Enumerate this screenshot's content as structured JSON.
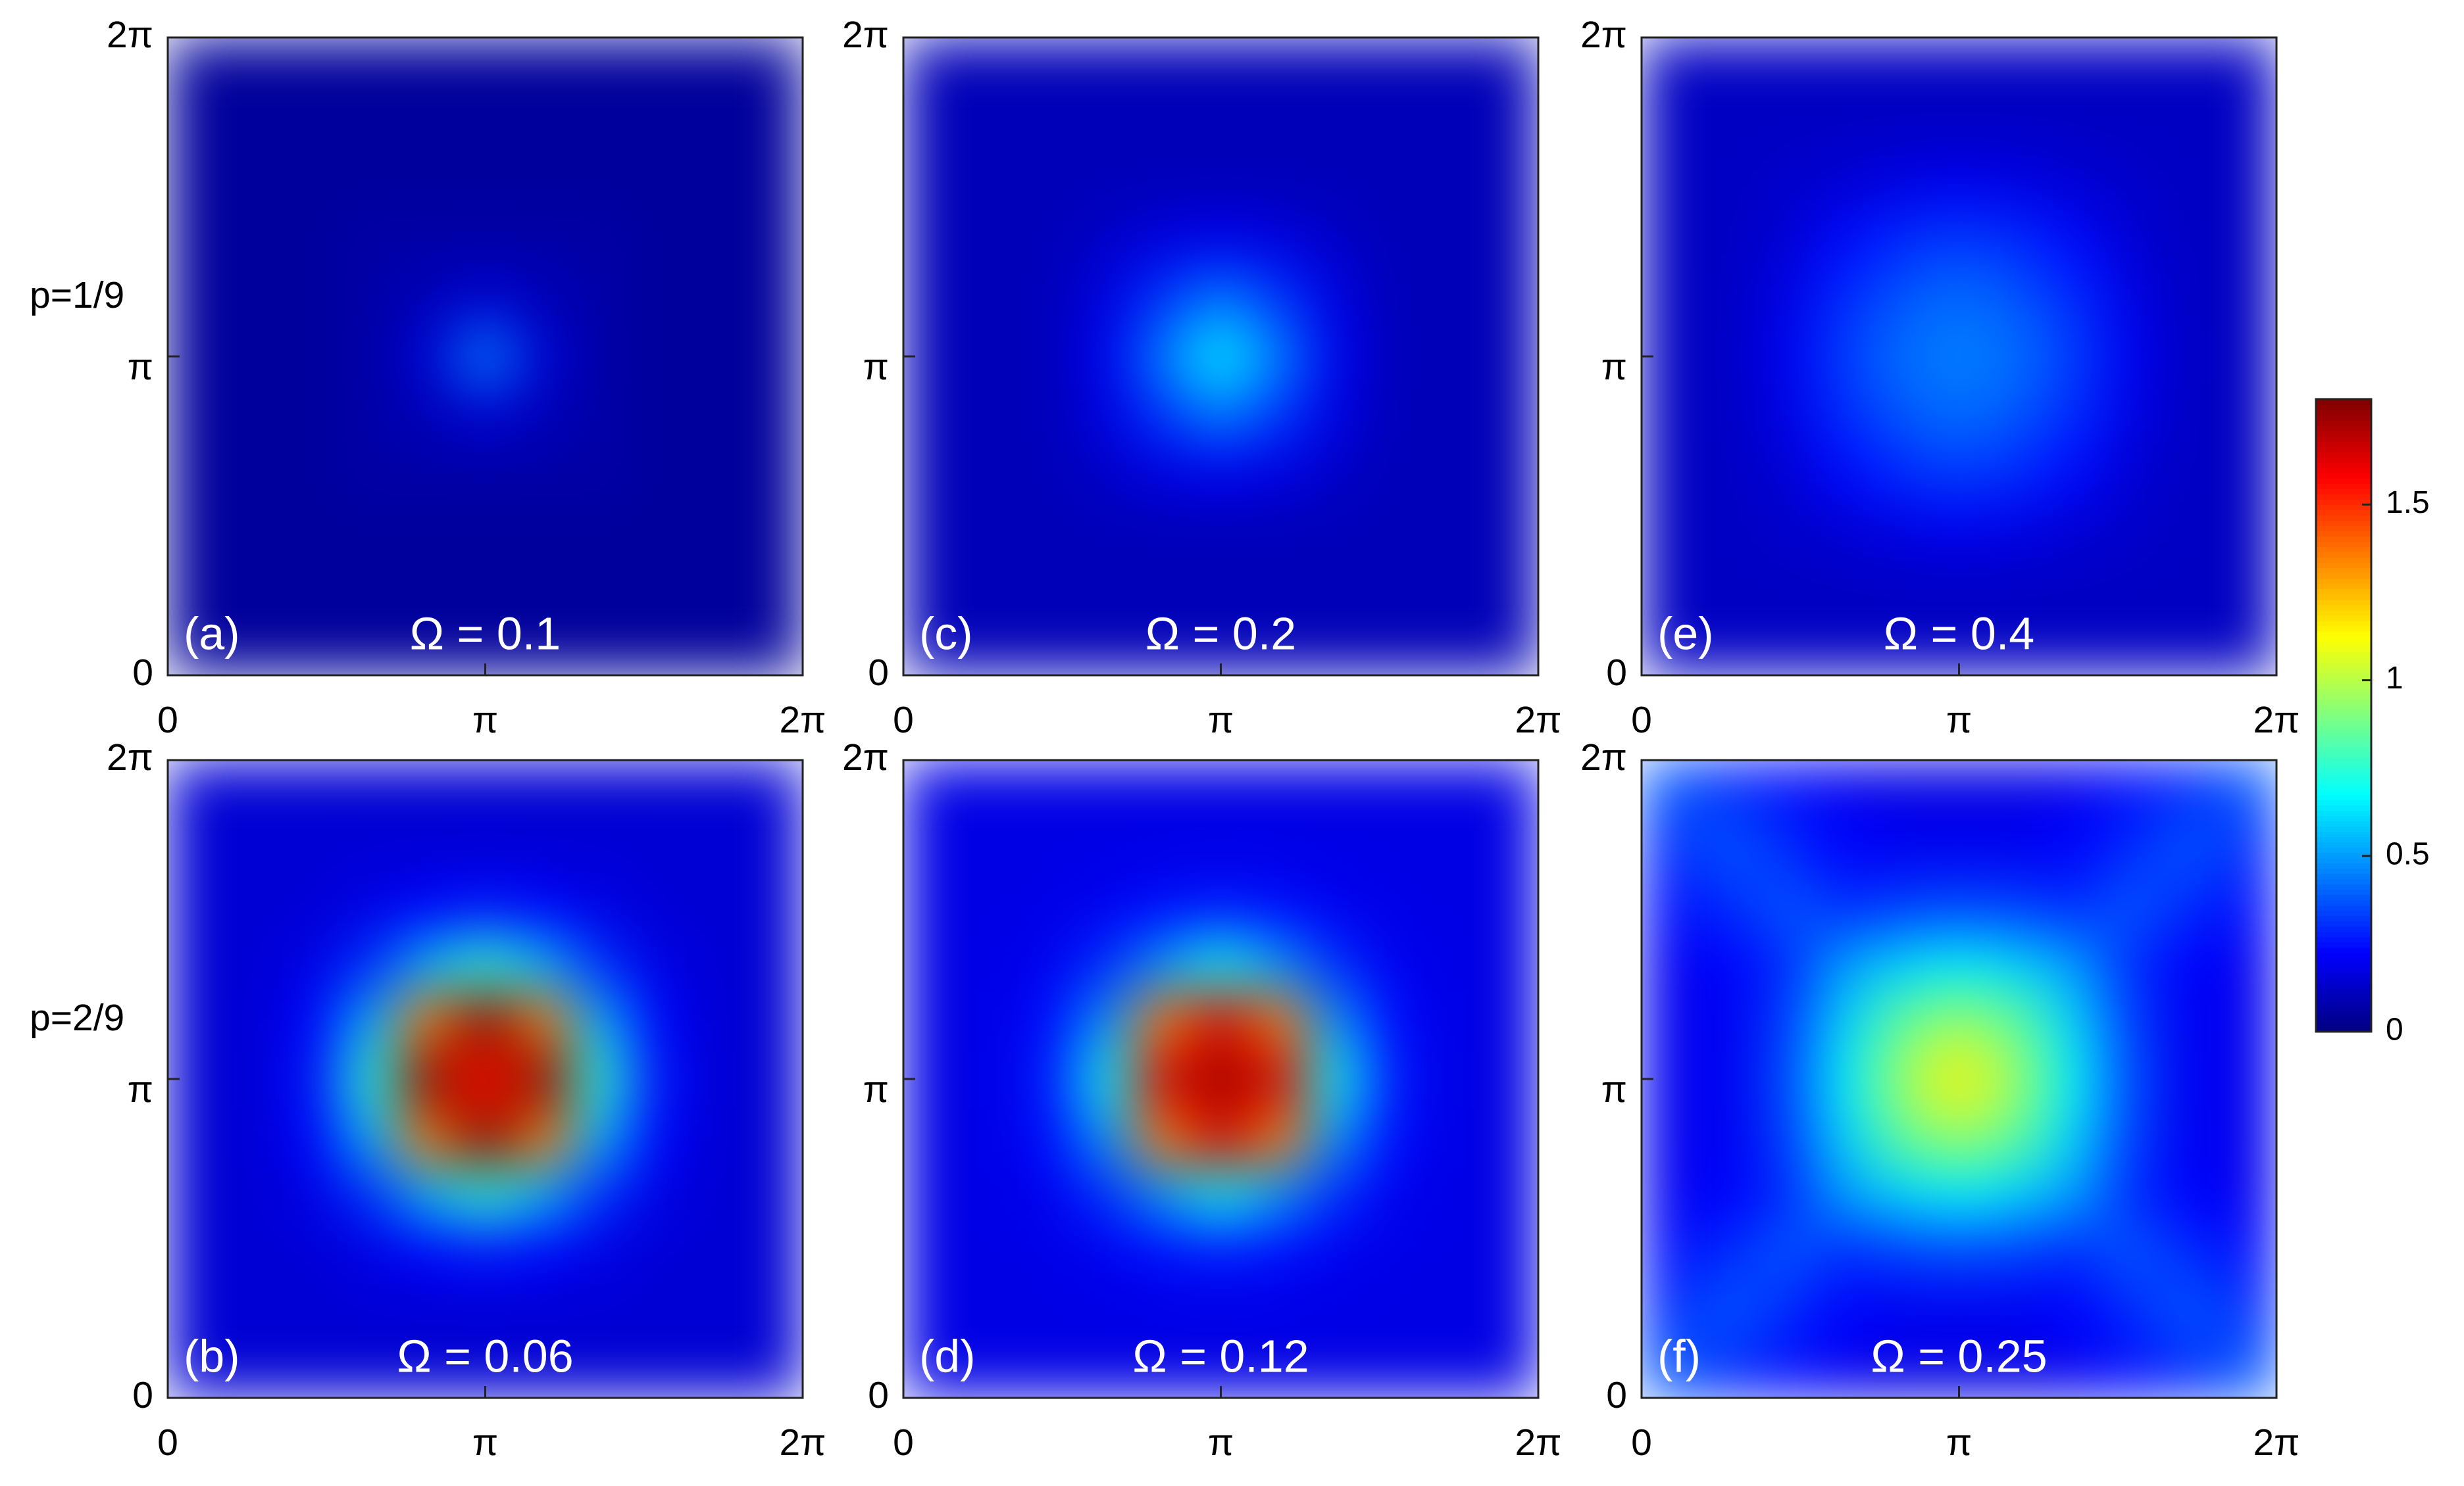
{
  "chart_data": [
    {
      "type": "heatmap",
      "label": "(a)",
      "annotation": "Ω = 0.1",
      "xlim": [
        0,
        6.28319
      ],
      "ylim": [
        0,
        6.28319
      ],
      "xticks": [
        0,
        {
          "value": 3.14159,
          "label": "π"
        },
        {
          "value": 6.28319,
          "label": "2π"
        }
      ],
      "yticks": [
        0,
        {
          "value": 3.14159,
          "label": "π"
        },
        {
          "value": 6.28319,
          "label": "2π"
        }
      ],
      "z": [
        [
          0.05,
          0.05,
          0.05,
          0.05,
          0.05,
          0.05,
          0.05,
          0.05,
          0.05,
          0.05,
          0.05
        ],
        [
          0.05,
          0.05,
          0.05,
          0.05,
          0.05,
          0.05,
          0.05,
          0.05,
          0.05,
          0.05,
          0.05
        ],
        [
          0.05,
          0.05,
          0.05,
          0.05,
          0.05,
          0.05,
          0.05,
          0.05,
          0.05,
          0.05,
          0.05
        ],
        [
          0.05,
          0.05,
          0.05,
          0.07,
          0.07,
          0.07,
          0.07,
          0.07,
          0.05,
          0.05,
          0.05
        ],
        [
          0.05,
          0.05,
          0.05,
          0.07,
          0.1,
          0.15,
          0.1,
          0.07,
          0.05,
          0.05,
          0.05
        ],
        [
          0.05,
          0.05,
          0.05,
          0.07,
          0.15,
          0.45,
          0.15,
          0.07,
          0.05,
          0.05,
          0.05
        ],
        [
          0.05,
          0.05,
          0.05,
          0.07,
          0.1,
          0.15,
          0.1,
          0.07,
          0.05,
          0.05,
          0.05
        ],
        [
          0.05,
          0.05,
          0.05,
          0.07,
          0.07,
          0.07,
          0.07,
          0.07,
          0.05,
          0.05,
          0.05
        ],
        [
          0.05,
          0.05,
          0.05,
          0.05,
          0.05,
          0.05,
          0.05,
          0.05,
          0.05,
          0.05,
          0.05
        ],
        [
          0.05,
          0.05,
          0.05,
          0.05,
          0.05,
          0.05,
          0.05,
          0.05,
          0.05,
          0.05,
          0.05
        ],
        [
          0.05,
          0.05,
          0.05,
          0.05,
          0.05,
          0.05,
          0.05,
          0.05,
          0.05,
          0.05,
          0.05
        ]
      ]
    },
    {
      "type": "heatmap",
      "label": "(c)",
      "annotation": "Ω = 0.2",
      "xlim": [
        0,
        6.28319
      ],
      "ylim": [
        0,
        6.28319
      ],
      "xticks": [
        0,
        {
          "value": 3.14159,
          "label": "π"
        },
        {
          "value": 6.28319,
          "label": "2π"
        }
      ],
      "yticks": [
        0,
        {
          "value": 3.14159,
          "label": "π"
        },
        {
          "value": 6.28319,
          "label": "2π"
        }
      ],
      "z": [
        [
          0.1,
          0.1,
          0.1,
          0.1,
          0.1,
          0.1,
          0.1,
          0.1,
          0.1,
          0.1,
          0.1
        ],
        [
          0.1,
          0.1,
          0.1,
          0.1,
          0.1,
          0.1,
          0.1,
          0.1,
          0.1,
          0.1,
          0.1
        ],
        [
          0.1,
          0.1,
          0.1,
          0.1,
          0.1,
          0.1,
          0.1,
          0.1,
          0.1,
          0.1,
          0.1
        ],
        [
          0.1,
          0.1,
          0.1,
          0.13,
          0.17,
          0.2,
          0.17,
          0.13,
          0.1,
          0.1,
          0.1
        ],
        [
          0.1,
          0.1,
          0.1,
          0.17,
          0.32,
          0.45,
          0.32,
          0.17,
          0.1,
          0.1,
          0.1
        ],
        [
          0.1,
          0.1,
          0.1,
          0.2,
          0.45,
          0.65,
          0.45,
          0.2,
          0.1,
          0.1,
          0.1
        ],
        [
          0.1,
          0.1,
          0.1,
          0.17,
          0.32,
          0.45,
          0.32,
          0.17,
          0.1,
          0.1,
          0.1
        ],
        [
          0.1,
          0.1,
          0.1,
          0.13,
          0.17,
          0.2,
          0.17,
          0.13,
          0.1,
          0.1,
          0.1
        ],
        [
          0.1,
          0.1,
          0.1,
          0.1,
          0.1,
          0.1,
          0.1,
          0.1,
          0.1,
          0.1,
          0.1
        ],
        [
          0.1,
          0.1,
          0.1,
          0.1,
          0.1,
          0.1,
          0.1,
          0.1,
          0.1,
          0.1,
          0.1
        ],
        [
          0.1,
          0.1,
          0.1,
          0.1,
          0.1,
          0.1,
          0.1,
          0.1,
          0.1,
          0.1,
          0.1
        ]
      ]
    },
    {
      "type": "heatmap",
      "label": "(e)",
      "annotation": "Ω = 0.4",
      "xlim": [
        0,
        6.28319
      ],
      "ylim": [
        0,
        6.28319
      ],
      "xticks": [
        0,
        {
          "value": 3.14159,
          "label": "π"
        },
        {
          "value": 6.28319,
          "label": "2π"
        }
      ],
      "yticks": [
        0,
        {
          "value": 3.14159,
          "label": "π"
        },
        {
          "value": 6.28319,
          "label": "2π"
        }
      ],
      "z": [
        [
          0.12,
          0.12,
          0.12,
          0.12,
          0.12,
          0.12,
          0.12,
          0.12,
          0.12,
          0.12,
          0.12
        ],
        [
          0.12,
          0.12,
          0.12,
          0.12,
          0.12,
          0.12,
          0.12,
          0.12,
          0.12,
          0.12,
          0.12
        ],
        [
          0.12,
          0.12,
          0.13,
          0.15,
          0.18,
          0.2,
          0.18,
          0.15,
          0.13,
          0.12,
          0.12
        ],
        [
          0.12,
          0.12,
          0.15,
          0.24,
          0.3,
          0.33,
          0.3,
          0.24,
          0.15,
          0.12,
          0.12
        ],
        [
          0.12,
          0.12,
          0.18,
          0.3,
          0.38,
          0.42,
          0.38,
          0.3,
          0.18,
          0.12,
          0.12
        ],
        [
          0.12,
          0.12,
          0.2,
          0.33,
          0.42,
          0.45,
          0.42,
          0.33,
          0.2,
          0.12,
          0.12
        ],
        [
          0.12,
          0.12,
          0.18,
          0.3,
          0.38,
          0.42,
          0.38,
          0.3,
          0.18,
          0.12,
          0.12
        ],
        [
          0.12,
          0.12,
          0.15,
          0.24,
          0.3,
          0.33,
          0.3,
          0.24,
          0.15,
          0.12,
          0.12
        ],
        [
          0.12,
          0.12,
          0.13,
          0.15,
          0.18,
          0.2,
          0.18,
          0.15,
          0.13,
          0.12,
          0.12
        ],
        [
          0.12,
          0.12,
          0.12,
          0.12,
          0.12,
          0.12,
          0.12,
          0.12,
          0.12,
          0.12,
          0.12
        ],
        [
          0.12,
          0.12,
          0.12,
          0.12,
          0.12,
          0.12,
          0.12,
          0.12,
          0.12,
          0.12,
          0.12
        ]
      ]
    },
    {
      "type": "heatmap",
      "label": "(b)",
      "annotation": "Ω = 0.06",
      "xlim": [
        0,
        6.28319
      ],
      "ylim": [
        0,
        6.28319
      ],
      "xticks": [
        0,
        {
          "value": 3.14159,
          "label": "π"
        },
        {
          "value": 6.28319,
          "label": "2π"
        }
      ],
      "yticks": [
        0,
        {
          "value": 3.14159,
          "label": "π"
        },
        {
          "value": 6.28319,
          "label": "2π"
        }
      ],
      "z": [
        [
          0.15,
          0.15,
          0.15,
          0.15,
          0.15,
          0.15,
          0.15,
          0.15,
          0.15,
          0.15,
          0.15
        ],
        [
          0.15,
          0.15,
          0.15,
          0.15,
          0.15,
          0.15,
          0.15,
          0.15,
          0.15,
          0.15,
          0.15
        ],
        [
          0.15,
          0.15,
          0.15,
          0.18,
          0.22,
          0.25,
          0.22,
          0.18,
          0.15,
          0.15,
          0.15
        ],
        [
          0.15,
          0.15,
          0.18,
          0.3,
          0.55,
          0.75,
          0.55,
          0.3,
          0.18,
          0.15,
          0.15
        ],
        [
          0.15,
          0.15,
          0.22,
          0.55,
          1.35,
          1.8,
          1.35,
          0.55,
          0.22,
          0.15,
          0.15
        ],
        [
          0.15,
          0.15,
          0.25,
          0.75,
          1.8,
          1.55,
          1.8,
          0.75,
          0.25,
          0.15,
          0.15
        ],
        [
          0.15,
          0.15,
          0.22,
          0.55,
          1.35,
          1.8,
          1.35,
          0.55,
          0.22,
          0.15,
          0.15
        ],
        [
          0.15,
          0.15,
          0.18,
          0.3,
          0.55,
          0.75,
          0.55,
          0.3,
          0.18,
          0.15,
          0.15
        ],
        [
          0.15,
          0.15,
          0.15,
          0.18,
          0.22,
          0.25,
          0.22,
          0.18,
          0.15,
          0.15,
          0.15
        ],
        [
          0.15,
          0.15,
          0.15,
          0.15,
          0.15,
          0.15,
          0.15,
          0.15,
          0.15,
          0.15,
          0.15
        ],
        [
          0.15,
          0.15,
          0.15,
          0.15,
          0.15,
          0.15,
          0.15,
          0.15,
          0.15,
          0.15,
          0.15
        ]
      ]
    },
    {
      "type": "heatmap",
      "label": "(d)",
      "annotation": "Ω = 0.12",
      "xlim": [
        0,
        6.28319
      ],
      "ylim": [
        0,
        6.28319
      ],
      "xticks": [
        0,
        {
          "value": 3.14159,
          "label": "π"
        },
        {
          "value": 6.28319,
          "label": "2π"
        }
      ],
      "yticks": [
        0,
        {
          "value": 3.14159,
          "label": "π"
        },
        {
          "value": 6.28319,
          "label": "2π"
        }
      ],
      "z": [
        [
          0.18,
          0.18,
          0.18,
          0.18,
          0.18,
          0.18,
          0.18,
          0.18,
          0.18,
          0.18,
          0.18
        ],
        [
          0.18,
          0.18,
          0.18,
          0.18,
          0.18,
          0.18,
          0.18,
          0.18,
          0.18,
          0.18,
          0.18
        ],
        [
          0.18,
          0.18,
          0.18,
          0.2,
          0.24,
          0.26,
          0.24,
          0.2,
          0.18,
          0.18,
          0.18
        ],
        [
          0.18,
          0.18,
          0.2,
          0.3,
          0.5,
          0.7,
          0.5,
          0.3,
          0.2,
          0.18,
          0.18
        ],
        [
          0.18,
          0.18,
          0.24,
          0.5,
          1.35,
          1.65,
          1.35,
          0.5,
          0.24,
          0.18,
          0.18
        ],
        [
          0.18,
          0.18,
          0.26,
          0.7,
          1.65,
          1.75,
          1.65,
          0.7,
          0.26,
          0.18,
          0.18
        ],
        [
          0.18,
          0.18,
          0.24,
          0.5,
          1.35,
          1.65,
          1.35,
          0.5,
          0.24,
          0.18,
          0.18
        ],
        [
          0.18,
          0.18,
          0.2,
          0.3,
          0.5,
          0.7,
          0.5,
          0.3,
          0.2,
          0.18,
          0.18
        ],
        [
          0.18,
          0.18,
          0.18,
          0.2,
          0.24,
          0.26,
          0.24,
          0.2,
          0.18,
          0.18,
          0.18
        ],
        [
          0.18,
          0.18,
          0.18,
          0.18,
          0.18,
          0.18,
          0.18,
          0.18,
          0.18,
          0.18,
          0.18
        ],
        [
          0.18,
          0.18,
          0.18,
          0.18,
          0.18,
          0.18,
          0.18,
          0.18,
          0.18,
          0.18,
          0.18
        ]
      ]
    },
    {
      "type": "heatmap",
      "label": "(f)",
      "annotation": "Ω = 0.25",
      "xlim": [
        0,
        6.28319
      ],
      "ylim": [
        0,
        6.28319
      ],
      "xticks": [
        0,
        {
          "value": 3.14159,
          "label": "π"
        },
        {
          "value": 6.28319,
          "label": "2π"
        }
      ],
      "yticks": [
        0,
        {
          "value": 3.14159,
          "label": "π"
        },
        {
          "value": 6.28319,
          "label": "2π"
        }
      ],
      "z": [
        [
          0.38,
          0.3,
          0.25,
          0.2,
          0.18,
          0.18,
          0.18,
          0.2,
          0.25,
          0.3,
          0.38
        ],
        [
          0.3,
          0.38,
          0.3,
          0.22,
          0.2,
          0.2,
          0.2,
          0.22,
          0.3,
          0.38,
          0.3
        ],
        [
          0.25,
          0.3,
          0.38,
          0.3,
          0.33,
          0.35,
          0.33,
          0.3,
          0.38,
          0.3,
          0.25
        ],
        [
          0.2,
          0.22,
          0.3,
          0.5,
          0.6,
          0.65,
          0.6,
          0.5,
          0.3,
          0.22,
          0.2
        ],
        [
          0.2,
          0.2,
          0.33,
          0.6,
          0.85,
          0.95,
          0.85,
          0.6,
          0.33,
          0.2,
          0.2
        ],
        [
          0.2,
          0.2,
          0.35,
          0.65,
          0.95,
          1.15,
          0.95,
          0.65,
          0.35,
          0.2,
          0.2
        ],
        [
          0.2,
          0.2,
          0.33,
          0.6,
          0.85,
          0.95,
          0.85,
          0.6,
          0.33,
          0.2,
          0.2
        ],
        [
          0.2,
          0.22,
          0.3,
          0.5,
          0.6,
          0.65,
          0.6,
          0.5,
          0.3,
          0.22,
          0.2
        ],
        [
          0.25,
          0.3,
          0.38,
          0.3,
          0.33,
          0.35,
          0.33,
          0.3,
          0.38,
          0.3,
          0.25
        ],
        [
          0.3,
          0.38,
          0.3,
          0.22,
          0.2,
          0.2,
          0.2,
          0.22,
          0.3,
          0.38,
          0.3
        ],
        [
          0.38,
          0.3,
          0.25,
          0.2,
          0.18,
          0.18,
          0.18,
          0.2,
          0.25,
          0.3,
          0.38
        ]
      ]
    }
  ],
  "row_labels": [
    "p=1/9",
    "p=2/9"
  ],
  "colorbar": {
    "clim": [
      0,
      1.8
    ],
    "ticks": [
      0,
      0.5,
      1,
      1.5
    ],
    "colormap": "jet"
  }
}
